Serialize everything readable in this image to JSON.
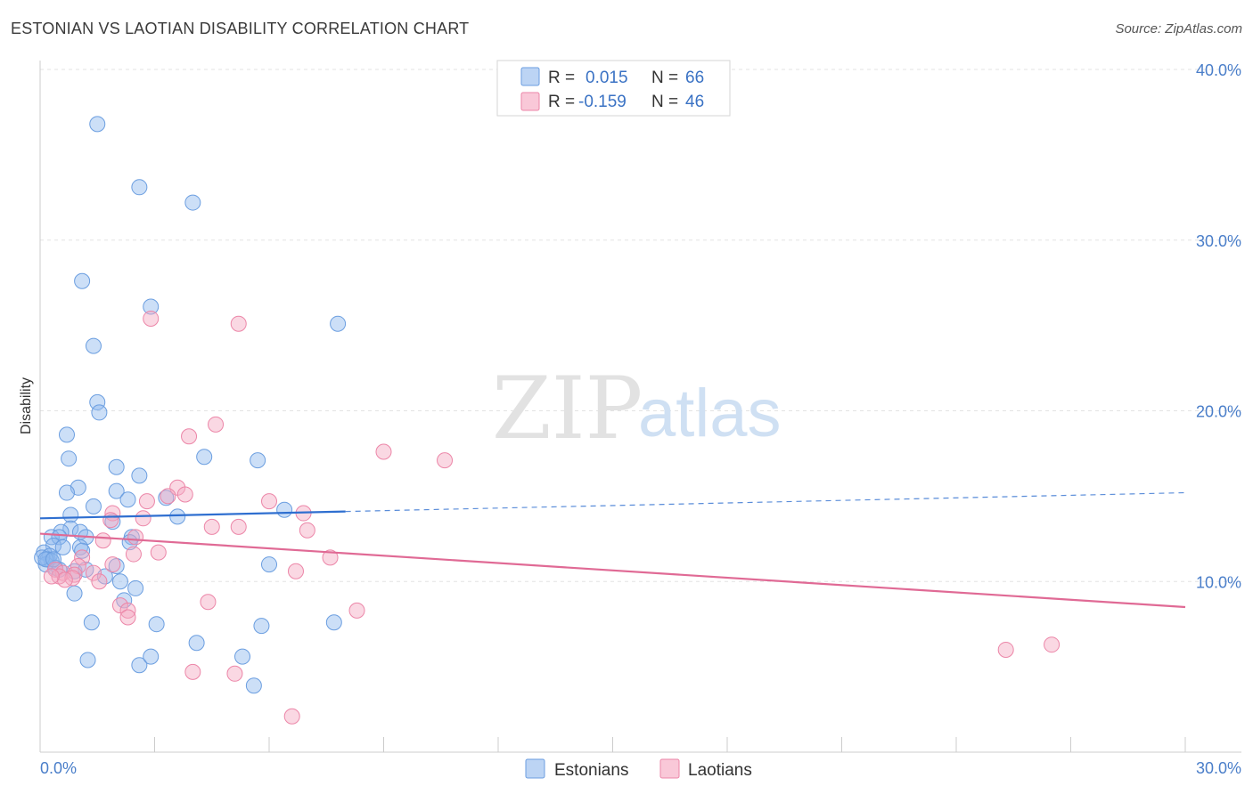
{
  "header": {
    "title": "ESTONIAN VS LAOTIAN DISABILITY CORRELATION CHART",
    "source": "Source: ZipAtlas.com"
  },
  "watermark": {
    "zip": "ZIP",
    "atlas": "atlas"
  },
  "legend": {
    "rows": [
      {
        "r_label": "R =",
        "r_value": "0.015",
        "n_label": "N =",
        "n_value": "66",
        "color": "#8fb8ee"
      },
      {
        "r_label": "R =",
        "r_value": "-0.159",
        "n_label": "N =",
        "n_value": "46",
        "color": "#f4a9c2"
      }
    ]
  },
  "chart_data": {
    "type": "scatter",
    "title": "ESTONIAN VS LAOTIAN DISABILITY CORRELATION CHART",
    "xlabel": "",
    "ylabel": "Disability",
    "xlim": [
      0,
      30
    ],
    "ylim": [
      0,
      40
    ],
    "x_tick_labels": [
      {
        "value": 0,
        "label": "0.0%"
      },
      {
        "value": 30,
        "label": "30.0%"
      }
    ],
    "y_tick_labels": [
      {
        "value": 10,
        "label": "10.0%"
      },
      {
        "value": 20,
        "label": "20.0%"
      },
      {
        "value": 30,
        "label": "30.0%"
      },
      {
        "value": 40,
        "label": "40.0%"
      }
    ],
    "grid": true,
    "series": [
      {
        "name": "Estonians",
        "color": "#8fb8ee",
        "stroke": "#6b9ee0",
        "line_color": "#2f6fd0",
        "trend": {
          "x0": 0.0,
          "y0": 13.7,
          "x1": 8.0,
          "y1": 14.1,
          "x_dash_end": 30.0,
          "y_dash_end": 15.2
        },
        "points": [
          [
            1.5,
            36.8
          ],
          [
            2.6,
            33.1
          ],
          [
            4.0,
            32.2
          ],
          [
            1.1,
            27.6
          ],
          [
            2.9,
            26.1
          ],
          [
            7.8,
            25.1
          ],
          [
            1.4,
            23.8
          ],
          [
            1.5,
            20.5
          ],
          [
            1.55,
            19.9
          ],
          [
            0.7,
            18.6
          ],
          [
            0.75,
            17.2
          ],
          [
            4.3,
            17.3
          ],
          [
            5.7,
            17.1
          ],
          [
            2.0,
            16.7
          ],
          [
            2.6,
            16.2
          ],
          [
            1.0,
            15.5
          ],
          [
            0.7,
            15.2
          ],
          [
            2.0,
            15.3
          ],
          [
            3.3,
            14.9
          ],
          [
            2.3,
            14.8
          ],
          [
            1.4,
            14.4
          ],
          [
            6.4,
            14.2
          ],
          [
            0.8,
            13.9
          ],
          [
            3.6,
            13.8
          ],
          [
            1.9,
            13.5
          ],
          [
            0.8,
            13.1
          ],
          [
            0.55,
            12.9
          ],
          [
            1.05,
            12.9
          ],
          [
            0.3,
            12.6
          ],
          [
            0.5,
            12.6
          ],
          [
            1.2,
            12.6
          ],
          [
            2.4,
            12.6
          ],
          [
            2.35,
            12.3
          ],
          [
            0.35,
            12.1
          ],
          [
            0.6,
            12.0
          ],
          [
            1.05,
            12.0
          ],
          [
            0.1,
            11.7
          ],
          [
            0.25,
            11.5
          ],
          [
            1.1,
            11.8
          ],
          [
            0.2,
            11.3
          ],
          [
            0.3,
            11.2
          ],
          [
            0.15,
            11.0
          ],
          [
            0.05,
            11.4
          ],
          [
            0.4,
            10.8
          ],
          [
            0.5,
            10.7
          ],
          [
            0.9,
            10.6
          ],
          [
            1.2,
            10.7
          ],
          [
            6.0,
            11.0
          ],
          [
            2.0,
            10.9
          ],
          [
            1.7,
            10.3
          ],
          [
            2.1,
            10.0
          ],
          [
            2.5,
            9.6
          ],
          [
            0.9,
            9.3
          ],
          [
            2.2,
            8.9
          ],
          [
            1.35,
            7.6
          ],
          [
            3.05,
            7.5
          ],
          [
            5.8,
            7.4
          ],
          [
            7.7,
            7.6
          ],
          [
            4.1,
            6.4
          ],
          [
            1.25,
            5.4
          ],
          [
            2.6,
            5.1
          ],
          [
            2.9,
            5.6
          ],
          [
            5.3,
            5.6
          ],
          [
            5.6,
            3.9
          ],
          [
            0.15,
            11.3
          ],
          [
            0.35,
            11.3
          ]
        ]
      },
      {
        "name": "Laotians",
        "color": "#f4a9c2",
        "stroke": "#ec86a8",
        "line_color": "#e06a95",
        "trend": {
          "x0": 0.0,
          "y0": 12.8,
          "x1": 30.0,
          "y1": 8.5
        },
        "points": [
          [
            2.9,
            25.4
          ],
          [
            5.2,
            25.1
          ],
          [
            4.6,
            19.2
          ],
          [
            3.9,
            18.5
          ],
          [
            9.0,
            17.6
          ],
          [
            10.6,
            17.1
          ],
          [
            3.6,
            15.5
          ],
          [
            3.8,
            15.1
          ],
          [
            3.35,
            15.0
          ],
          [
            2.8,
            14.7
          ],
          [
            6.0,
            14.7
          ],
          [
            6.9,
            14.0
          ],
          [
            1.9,
            14.0
          ],
          [
            2.7,
            13.7
          ],
          [
            1.85,
            13.6
          ],
          [
            4.5,
            13.2
          ],
          [
            5.2,
            13.2
          ],
          [
            7.0,
            13.0
          ],
          [
            2.5,
            12.6
          ],
          [
            1.65,
            12.4
          ],
          [
            3.1,
            11.7
          ],
          [
            2.45,
            11.6
          ],
          [
            7.6,
            11.4
          ],
          [
            1.1,
            11.4
          ],
          [
            1.0,
            10.9
          ],
          [
            0.4,
            10.7
          ],
          [
            0.6,
            10.5
          ],
          [
            6.7,
            10.6
          ],
          [
            1.4,
            10.5
          ],
          [
            0.9,
            10.4
          ],
          [
            0.5,
            10.3
          ],
          [
            0.85,
            10.2
          ],
          [
            0.65,
            10.1
          ],
          [
            1.55,
            10.0
          ],
          [
            0.3,
            10.3
          ],
          [
            1.9,
            11.0
          ],
          [
            4.4,
            8.8
          ],
          [
            8.3,
            8.3
          ],
          [
            2.1,
            8.6
          ],
          [
            2.3,
            8.3
          ],
          [
            2.3,
            7.9
          ],
          [
            4.0,
            4.7
          ],
          [
            5.1,
            4.6
          ],
          [
            6.6,
            2.1
          ],
          [
            25.3,
            6.0
          ],
          [
            26.5,
            6.3
          ]
        ]
      }
    ]
  },
  "bottom_legend": [
    {
      "label": "Estonians",
      "color": "#8fb8ee"
    },
    {
      "label": "Laotians",
      "color": "#f4a9c2"
    }
  ]
}
